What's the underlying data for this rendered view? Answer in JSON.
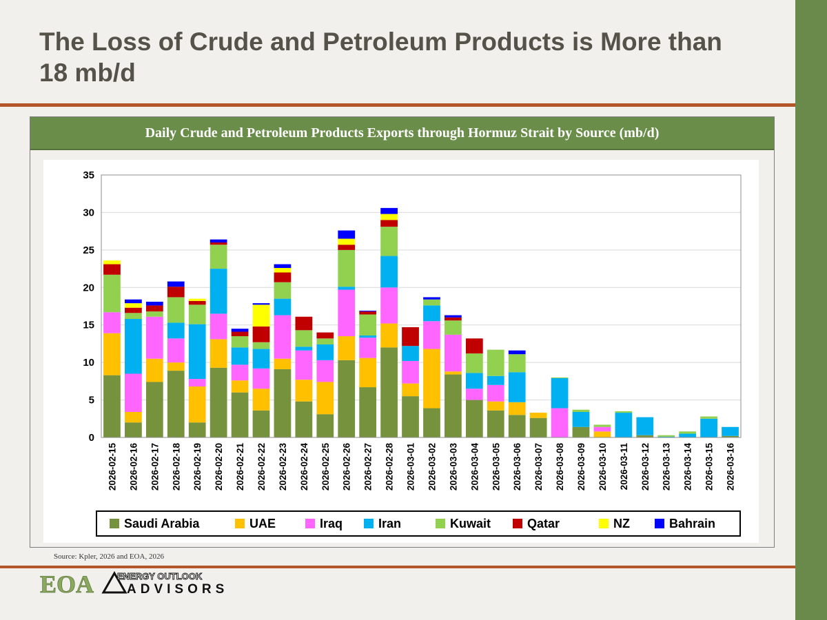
{
  "slide": {
    "title": "The Loss of Crude and Petroleum Products is More than 18 mb/d",
    "chart_header": "Daily Crude and Petroleum Products Exports through Hormuz Strait by Source (mb/d)",
    "source": "Source:  Kpler, 2026 and EOA, 2026",
    "logo": {
      "mark": "EOA",
      "line1": "ENERGY OUTLOOK",
      "line2": "ADVISORS"
    }
  },
  "colors": {
    "sidebar": "#6a8a4c",
    "accent_rule": "#b5552a",
    "header_bar": "#6b8d4a",
    "title_text": "#555249"
  },
  "chart_data": {
    "type": "bar",
    "stacked": true,
    "title": "Daily Crude and Petroleum Products Exports through Hormuz Strait by Source (mb/d)",
    "ylim": [
      0,
      35
    ],
    "yticks": [
      0,
      5,
      10,
      15,
      20,
      25,
      30,
      35
    ],
    "grid": true,
    "legend_position": "bottom",
    "categories": [
      "2026-02-15",
      "2026-02-16",
      "2026-02-17",
      "2026-02-18",
      "2026-02-19",
      "2026-02-20",
      "2026-02-21",
      "2026-02-22",
      "2026-02-23",
      "2026-02-24",
      "2026-02-25",
      "2026-02-26",
      "2026-02-27",
      "2026-02-28",
      "2026-03-01",
      "2026-03-02",
      "2026-03-03",
      "2026-03-04",
      "2026-03-05",
      "2026-03-06",
      "2026-03-07",
      "2026-03-08",
      "2026-03-09",
      "2026-03-10",
      "2026-03-11",
      "2026-03-12",
      "2026-03-13",
      "2026-03-14",
      "2026-03-15",
      "2026-03-16"
    ],
    "series": [
      {
        "name": "Saudi Arabia",
        "color": "#76923c",
        "values": [
          8.3,
          2.0,
          7.4,
          8.9,
          2.0,
          9.3,
          6.0,
          3.6,
          9.1,
          4.8,
          3.1,
          10.3,
          6.7,
          12.0,
          5.5,
          3.9,
          8.4,
          5.0,
          3.6,
          3.0,
          2.6,
          0.0,
          1.4,
          0.0,
          0.0,
          0.3,
          0.0,
          0.0,
          0.0,
          0.2
        ]
      },
      {
        "name": "UAE",
        "color": "#ffc000",
        "values": [
          5.6,
          1.4,
          3.1,
          1.1,
          4.8,
          3.8,
          1.6,
          2.9,
          1.4,
          2.9,
          4.3,
          3.2,
          3.9,
          3.2,
          1.7,
          7.9,
          0.4,
          0.0,
          1.2,
          1.7,
          0.7,
          0.0,
          0.0,
          0.8,
          0.0,
          0.0,
          0.0,
          0.0,
          0.0,
          0.0
        ]
      },
      {
        "name": "Iraq",
        "color": "#ff66ff",
        "values": [
          2.8,
          5.1,
          5.6,
          3.2,
          1.0,
          3.4,
          2.1,
          2.7,
          5.8,
          3.9,
          2.9,
          6.2,
          2.7,
          4.8,
          3.0,
          3.7,
          4.9,
          1.5,
          2.2,
          0.0,
          0.0,
          3.9,
          0.0,
          0.6,
          0.0,
          0.0,
          0.0,
          0.0,
          0.0,
          0.0
        ]
      },
      {
        "name": "Iran",
        "color": "#00b0f0",
        "values": [
          0.0,
          7.3,
          0.0,
          2.1,
          7.3,
          6.0,
          2.3,
          2.6,
          2.2,
          0.5,
          2.1,
          0.4,
          0.3,
          4.2,
          2.0,
          2.1,
          0.0,
          2.1,
          1.2,
          4.0,
          0.0,
          4.0,
          2.0,
          0.0,
          3.3,
          2.4,
          0.1,
          0.5,
          2.5,
          1.2
        ]
      },
      {
        "name": "Kuwait",
        "color": "#92d050",
        "values": [
          5.0,
          0.8,
          0.7,
          3.4,
          2.6,
          3.2,
          1.5,
          0.9,
          2.2,
          2.2,
          0.8,
          4.9,
          2.8,
          3.9,
          0.0,
          0.8,
          1.9,
          2.6,
          3.5,
          2.4,
          0.0,
          0.1,
          0.3,
          0.3,
          0.2,
          0.0,
          0.2,
          0.3,
          0.3,
          0.0
        ]
      },
      {
        "name": "Qatar",
        "color": "#c00000",
        "values": [
          1.4,
          0.7,
          0.8,
          1.4,
          0.5,
          0.3,
          0.6,
          2.1,
          1.3,
          1.8,
          0.8,
          0.7,
          0.4,
          0.9,
          2.5,
          0.0,
          0.4,
          2.0,
          0.0,
          0.0,
          0.0,
          0.0,
          0.0,
          0.0,
          0.0,
          0.0,
          0.0,
          0.0,
          0.0,
          0.0
        ]
      },
      {
        "name": "NZ",
        "color": "#ffff00",
        "values": [
          0.5,
          0.6,
          0.0,
          0.0,
          0.3,
          0.0,
          0.0,
          2.9,
          0.6,
          0.0,
          0.0,
          0.8,
          0.0,
          0.8,
          0.0,
          0.0,
          0.0,
          0.0,
          0.0,
          0.0,
          0.0,
          0.0,
          0.0,
          0.0,
          0.0,
          0.0,
          0.0,
          0.0,
          0.0,
          0.0
        ]
      },
      {
        "name": "Bahrain",
        "color": "#0000ff",
        "values": [
          0.0,
          0.5,
          0.5,
          0.7,
          0.0,
          0.4,
          0.4,
          0.2,
          0.5,
          0.0,
          0.0,
          1.1,
          0.1,
          0.8,
          0.0,
          0.3,
          0.3,
          0.0,
          0.0,
          0.5,
          0.0,
          0.0,
          0.0,
          0.0,
          0.0,
          0.0,
          0.0,
          0.0,
          0.0,
          0.0
        ]
      }
    ]
  }
}
